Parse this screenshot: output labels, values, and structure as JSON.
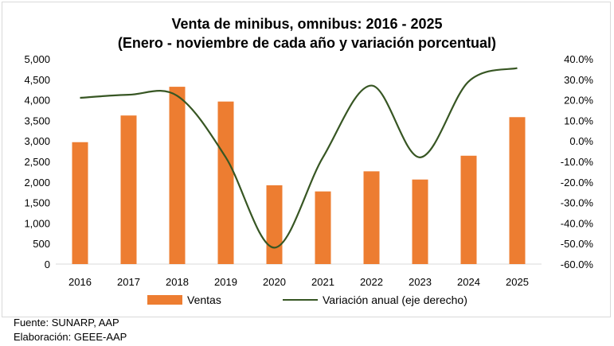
{
  "chart_data": {
    "type": "bar",
    "title": "Venta de minibus, omnibus: 2016 - 2025",
    "subtitle": "(Enero - noviembre de cada año y variación porcentual)",
    "categories": [
      "2016",
      "2017",
      "2018",
      "2019",
      "2020",
      "2021",
      "2022",
      "2023",
      "2024",
      "2025"
    ],
    "series": [
      {
        "name": "Ventas",
        "type": "bar",
        "axis": "left",
        "color": "#ed7d31",
        "values": [
          2970,
          3620,
          4320,
          3960,
          1920,
          1770,
          2260,
          2060,
          2640,
          3580
        ]
      },
      {
        "name": "Variación anual (eje derecho)",
        "type": "line",
        "axis": "right",
        "color": "#375623",
        "values": [
          21.0,
          22.5,
          22.0,
          -8.0,
          -52.0,
          -8.0,
          27.0,
          -8.0,
          29.0,
          35.5
        ]
      }
    ],
    "y_left": {
      "range": [
        0,
        5000
      ],
      "ticks": [
        "0",
        "500",
        "1,000",
        "1,500",
        "2,000",
        "2,500",
        "3,000",
        "3,500",
        "4,000",
        "4,500",
        "5,000"
      ]
    },
    "y_right": {
      "range": [
        -60,
        40
      ],
      "ticks": [
        "-60.0%",
        "-50.0%",
        "-40.0%",
        "-30.0%",
        "-20.0%",
        "-10.0%",
        "0.0%",
        "10.0%",
        "20.0%",
        "30.0%",
        "40.0%"
      ]
    },
    "legend": {
      "position": "bottom"
    },
    "grid": false
  },
  "footer": {
    "source": "Fuente: SUNARP, AAP",
    "elaboration": "Elaboración: GEEE-AAP"
  }
}
